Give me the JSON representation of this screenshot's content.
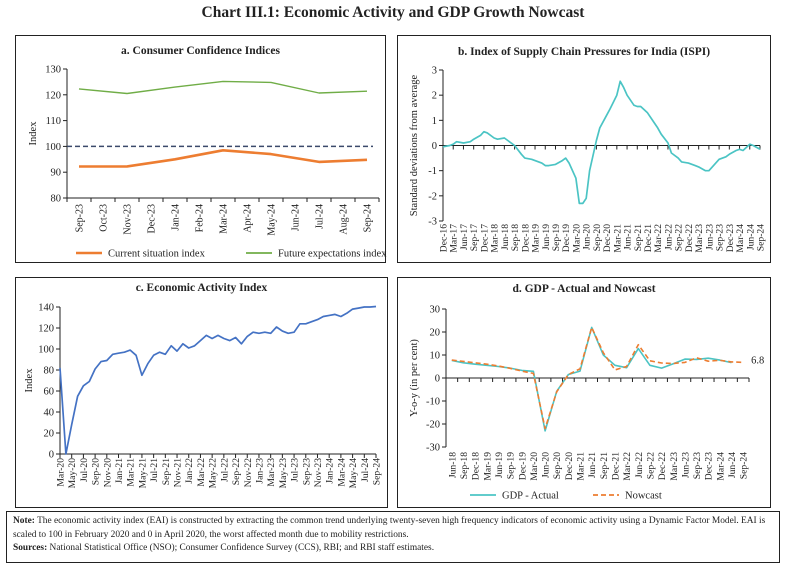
{
  "figure_title": "Chart III.1: Economic Activity and GDP Growth Nowcast",
  "note": {
    "note_label": "Note:",
    "note_text": "The economic activity index (EAI) is constructed by extracting the common trend underlying twenty-seven high frequency indicators of economic activity using a Dynamic Factor Model. EAI is scaled to 100 in February 2020 and 0 in April 2020, the worst affected month due to mobility restrictions.",
    "sources_label": "Sources:",
    "sources_text": "National Statistical Office (NSO); Consumer Confidence Survey (CCS), RBI; and RBI staff estimates."
  },
  "chart_data": [
    {
      "type": "line",
      "title": "a. Consumer Confidence Indices",
      "ylabel": "Index",
      "xlabel": "",
      "ylim": [
        80,
        130
      ],
      "yticks": [
        80,
        90,
        100,
        110,
        120,
        130
      ],
      "categories": [
        "Sep-23",
        "Oct-23",
        "Nov-23",
        "Dec-23",
        "Jan-24",
        "Feb-24",
        "Mar-24",
        "Apr-24",
        "May-24",
        "Jun-24",
        "Jul-24",
        "Aug-24",
        "Sep-24"
      ],
      "series": [
        {
          "name": "Current situation index",
          "color": "#ED7D31",
          "style": "solid-thick",
          "values": [
            92.2,
            null,
            92.2,
            null,
            95.0,
            null,
            98.5,
            null,
            97.0,
            null,
            94.0,
            null,
            94.8
          ]
        },
        {
          "name": "Future expectations index",
          "color": "#70AD47",
          "style": "solid",
          "values": [
            122.3,
            null,
            120.5,
            null,
            123.0,
            null,
            125.2,
            null,
            124.8,
            null,
            120.7,
            null,
            121.4
          ]
        }
      ],
      "reference_line": {
        "value": 100,
        "color": "#3B4A6B",
        "style": "dashed"
      },
      "legend": "bottom",
      "grid": false
    },
    {
      "type": "line",
      "title": "b. Index of Supply Chain Pressures for India (ISPI)",
      "ylabel": "Standard deviations from average",
      "xlabel": "",
      "ylim": [
        -3,
        3
      ],
      "yticks": [
        -3,
        -2,
        -1,
        0,
        1,
        2,
        3
      ],
      "categories": [
        "Dec-16",
        "Mar-17",
        "Jun-17",
        "Sep-17",
        "Dec-17",
        "Mar-18",
        "Jun-18",
        "Sep-18",
        "Dec-18",
        "Mar-19",
        "Jun-19",
        "Sep-19",
        "Dec-19",
        "Mar-20",
        "Jun-20",
        "Sep-20",
        "Dec-20",
        "Mar-21",
        "Jun-21",
        "Sep-21",
        "Dec-21",
        "Mar-22",
        "Jun-22",
        "Sep-22",
        "Dec-22",
        "Mar-23",
        "Jun-23",
        "Sep-23",
        "Dec-23",
        "Mar-24",
        "Jun-24",
        "Sep-24"
      ],
      "series": [
        {
          "color": "#4BC4C4",
          "x": [
            "Dec-16",
            "Feb-17",
            "Mar-17",
            "Apr-17",
            "Jun-17",
            "Aug-17",
            "Sep-17",
            "Nov-17",
            "Dec-17",
            "Jan-18",
            "Mar-18",
            "Apr-18",
            "Jun-18",
            "Jul-18",
            "Sep-18",
            "Nov-18",
            "Dec-18",
            "Feb-19",
            "Mar-19",
            "May-19",
            "Jun-19",
            "Jul-19",
            "Sep-19",
            "Nov-19",
            "Dec-19",
            "Jan-20",
            "Mar-20",
            "Apr-20",
            "May-20",
            "Jun-20",
            "Jul-20",
            "Sep-20",
            "Oct-20",
            "Dec-20",
            "Jan-21",
            "Mar-21",
            "Apr-21",
            "May-21",
            "Jun-21",
            "Aug-21",
            "Sep-21",
            "Oct-21",
            "Dec-21",
            "Feb-22",
            "Mar-22",
            "Apr-22",
            "Jun-22",
            "Jul-22",
            "Sep-22",
            "Oct-22",
            "Dec-22",
            "Feb-23",
            "Mar-23",
            "May-23",
            "Jun-23",
            "Jul-23",
            "Sep-23",
            "Nov-23",
            "Dec-23",
            "Feb-24",
            "Mar-24",
            "Apr-24",
            "Jun-24",
            "Jul-24",
            "Sep-24"
          ],
          "values": [
            -0.05,
            0.0,
            0.05,
            0.15,
            0.1,
            0.15,
            0.25,
            0.4,
            0.55,
            0.5,
            0.3,
            0.25,
            0.3,
            0.2,
            0.0,
            -0.35,
            -0.5,
            -0.55,
            -0.6,
            -0.7,
            -0.8,
            -0.8,
            -0.75,
            -0.6,
            -0.5,
            -0.7,
            -1.3,
            -2.3,
            -2.3,
            -2.1,
            -1.0,
            0.2,
            0.7,
            1.2,
            1.45,
            2.0,
            2.55,
            2.3,
            2.0,
            1.6,
            1.55,
            1.55,
            1.3,
            0.9,
            0.7,
            0.45,
            0.1,
            -0.3,
            -0.5,
            -0.65,
            -0.7,
            -0.8,
            -0.85,
            -1.0,
            -1.0,
            -0.85,
            -0.55,
            -0.45,
            -0.35,
            -0.2,
            -0.15,
            -0.2,
            0.05,
            0.0,
            -0.15
          ]
        }
      ],
      "legend": "none",
      "grid": false
    },
    {
      "type": "line",
      "title": "c. Economic Activity Index",
      "ylabel": "Index",
      "xlabel": "",
      "ylim": [
        0,
        140
      ],
      "yticks": [
        0,
        20,
        40,
        60,
        80,
        100,
        120,
        140
      ],
      "categories": [
        "Mar-20",
        "May-20",
        "Jul-20",
        "Sep-20",
        "Nov-20",
        "Jan-21",
        "Mar-21",
        "May-21",
        "Jul-21",
        "Sep-21",
        "Nov-21",
        "Jan-22",
        "Mar-22",
        "May-22",
        "Jul-22",
        "Sep-22",
        "Nov-22",
        "Jan-23",
        "Mar-23",
        "May-23",
        "Jul-23",
        "Sep-23",
        "Nov-23",
        "Jan-24",
        "Mar-24",
        "May-24",
        "Jul-24",
        "Sep-24"
      ],
      "series": [
        {
          "color": "#4472C4",
          "x": [
            "Mar-20",
            "Apr-20",
            "May-20",
            "Jun-20",
            "Jul-20",
            "Aug-20",
            "Sep-20",
            "Oct-20",
            "Nov-20",
            "Dec-20",
            "Jan-21",
            "Feb-21",
            "Mar-21",
            "Apr-21",
            "May-21",
            "Jun-21",
            "Jul-21",
            "Aug-21",
            "Sep-21",
            "Oct-21",
            "Nov-21",
            "Dec-21",
            "Jan-22",
            "Feb-22",
            "Mar-22",
            "Apr-22",
            "May-22",
            "Jun-22",
            "Jul-22",
            "Aug-22",
            "Sep-22",
            "Oct-22",
            "Nov-22",
            "Dec-22",
            "Jan-23",
            "Feb-23",
            "Mar-23",
            "Apr-23",
            "May-23",
            "Jun-23",
            "Jul-23",
            "Aug-23",
            "Sep-23",
            "Oct-23",
            "Nov-23",
            "Dec-23",
            "Jan-24",
            "Feb-24",
            "Mar-24",
            "Apr-24",
            "May-24",
            "Jun-24",
            "Jul-24",
            "Aug-24",
            "Sep-24"
          ],
          "values": [
            82,
            0,
            28,
            55,
            65,
            69,
            81,
            88,
            89,
            95,
            96,
            97,
            99,
            94,
            75,
            86,
            94,
            97,
            95,
            103,
            98,
            105,
            101,
            103,
            108,
            113,
            110,
            113,
            110,
            108,
            111,
            105,
            112,
            116,
            115,
            116,
            115,
            121,
            117,
            115,
            116,
            124,
            124,
            126,
            128,
            131,
            132,
            133,
            131,
            134,
            138,
            139,
            140,
            140,
            140.5
          ]
        }
      ],
      "legend": "none",
      "grid": false
    },
    {
      "type": "line",
      "title": "d. GDP - Actual and Nowcast",
      "ylabel": "Y-o-y (in per cent)",
      "xlabel": "",
      "ylim": [
        -30,
        30
      ],
      "yticks": [
        -30,
        -20,
        -10,
        0,
        10,
        20,
        30
      ],
      "categories": [
        "Jun-18",
        "Sep-18",
        "Dec-18",
        "Mar-19",
        "Jun-19",
        "Sep-19",
        "Dec-19",
        "Mar-20",
        "Jun-20",
        "Sep-20",
        "Dec-20",
        "Mar-21",
        "Jun-21",
        "Sep-21",
        "Dec-21",
        "Mar-22",
        "Jun-22",
        "Sep-22",
        "Dec-22",
        "Mar-23",
        "Jun-23",
        "Sep-23",
        "Dec-23",
        "Mar-24",
        "Jun-24",
        "Sep-24"
      ],
      "series": [
        {
          "name": "GDP - Actual",
          "color": "#4BC4C4",
          "style": "solid",
          "values": [
            7.6,
            6.6,
            6.0,
            5.5,
            5.0,
            4.3,
            3.3,
            2.9,
            -23.0,
            -5.8,
            1.5,
            3.0,
            22.0,
            10.0,
            5.5,
            4.5,
            12.8,
            5.5,
            4.3,
            6.2,
            8.2,
            8.1,
            8.6,
            7.8,
            6.7,
            null
          ]
        },
        {
          "name": "Nowcast",
          "color": "#ED7D31",
          "style": "dashed",
          "values": [
            7.8,
            7.2,
            6.6,
            6.0,
            5.2,
            4.2,
            3.0,
            2.0,
            -22.0,
            -6.0,
            1.5,
            4.0,
            22.0,
            11.0,
            3.5,
            5.0,
            14.5,
            7.5,
            6.5,
            6.3,
            6.8,
            8.8,
            7.3,
            7.7,
            7.0,
            6.8
          ]
        }
      ],
      "annotations": [
        {
          "text": "6.8",
          "x": "Sep-24",
          "y": 6.8
        }
      ],
      "legend": "bottom",
      "grid": false
    }
  ]
}
